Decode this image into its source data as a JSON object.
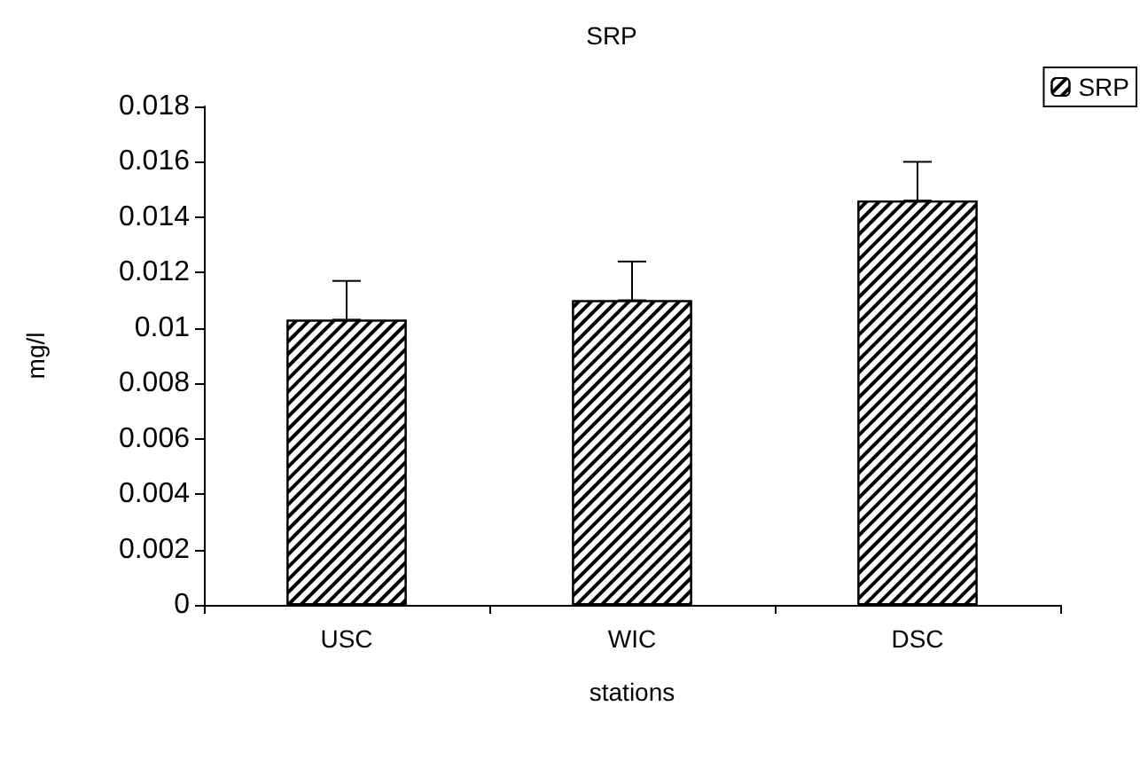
{
  "chart_data": {
    "type": "bar",
    "title": "SRP",
    "xlabel": "stations",
    "ylabel": "mg/l",
    "categories": [
      "USC",
      "WIC",
      "DSC"
    ],
    "series": [
      {
        "name": "SRP",
        "color": "#000000",
        "values": [
          0.0103,
          0.011,
          0.0146
        ],
        "errors": [
          [
            0.0103,
            0.0117
          ],
          [
            0.011,
            0.0124
          ],
          [
            0.0146,
            0.016
          ]
        ]
      }
    ],
    "ylim": [
      0,
      0.018
    ],
    "yticks": [
      0,
      0.002,
      0.004,
      0.006,
      0.008,
      0.01,
      0.012,
      0.014,
      0.016,
      0.018
    ],
    "grid": false,
    "legend": "top right"
  }
}
